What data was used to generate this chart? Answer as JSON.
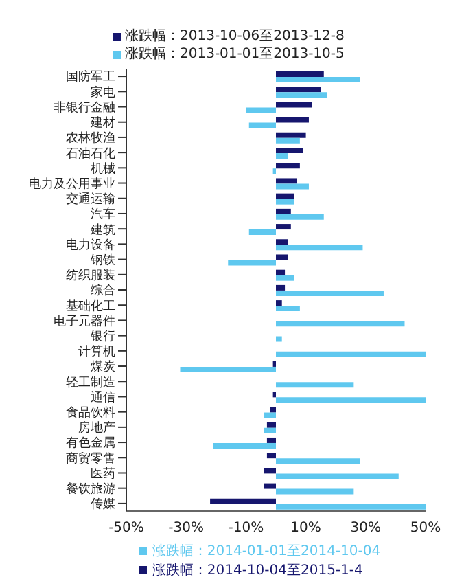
{
  "chart_data": {
    "type": "bar",
    "orientation": "horizontal",
    "categories": [
      "国防军工",
      "家电",
      "非银行金融",
      "建材",
      "农林牧渔",
      "石油石化",
      "机械",
      "电力及公用事业",
      "交通运输",
      "汽车",
      "建筑",
      "电力设备",
      "钢铁",
      "纺织服装",
      "综合",
      "基础化工",
      "电子元器件",
      "银行",
      "计算机",
      "煤炭",
      "轻工制造",
      "通信",
      "食品饮料",
      "房地产",
      "有色金属",
      "商贸零售",
      "医药",
      "餐饮旅游",
      "传媒"
    ],
    "series": [
      {
        "name": "涨跌幅：2014-10-04至2015-1-4",
        "color": "#16166e",
        "values": [
          16,
          15,
          12,
          11,
          10,
          9,
          8,
          7,
          6,
          5,
          5,
          4,
          4,
          3,
          3,
          2,
          0,
          0,
          0,
          -1,
          0,
          -1,
          -2,
          -3,
          -3,
          -3,
          -4,
          -4,
          -22
        ]
      },
      {
        "name": "涨跌幅：2014-01-01至2014-10-04",
        "color": "#5fc8ef",
        "values": [
          28,
          17,
          -10,
          -9,
          8,
          4,
          -1,
          11,
          6,
          16,
          -9,
          29,
          -16,
          6,
          36,
          8,
          43,
          2,
          50,
          -32,
          26,
          50,
          -4,
          -4,
          -21,
          28,
          41,
          26,
          50
        ]
      }
    ],
    "xlim": [
      -50,
      50
    ],
    "xticks": [
      {
        "value": -50,
        "label": "-50%"
      },
      {
        "value": -30,
        "label": "-30%"
      },
      {
        "value": -10,
        "label": "-10%"
      },
      {
        "value": 10,
        "label": "10%"
      },
      {
        "value": 30,
        "label": "30%"
      },
      {
        "value": 50,
        "label": "50%"
      }
    ],
    "legend": "bottom",
    "annotations": [
      "涨跌幅：2013-10-06至2013-12-8",
      "涨跌幅：2013-01-01至2013-10-5"
    ]
  }
}
